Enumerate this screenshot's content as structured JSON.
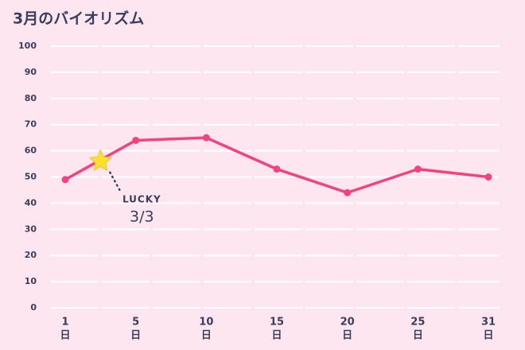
{
  "chart_data": {
    "type": "line",
    "title": "3月のバイオリズム",
    "categories": [
      "1",
      "5",
      "10",
      "15",
      "20",
      "25",
      "31"
    ],
    "x_unit": "日",
    "series": [
      {
        "name": "バイオリズム",
        "color": "#f2437f",
        "values": [
          49,
          64,
          65,
          53,
          44,
          53,
          50
        ]
      }
    ],
    "ylim": [
      0,
      100
    ],
    "yticks": [
      0,
      10,
      20,
      30,
      40,
      50,
      60,
      70,
      80,
      90,
      100
    ],
    "grid": true,
    "annotation": {
      "x": 3,
      "y": 56,
      "label": "LUCKY",
      "text": "3/3",
      "color": "#ffe02a"
    }
  }
}
